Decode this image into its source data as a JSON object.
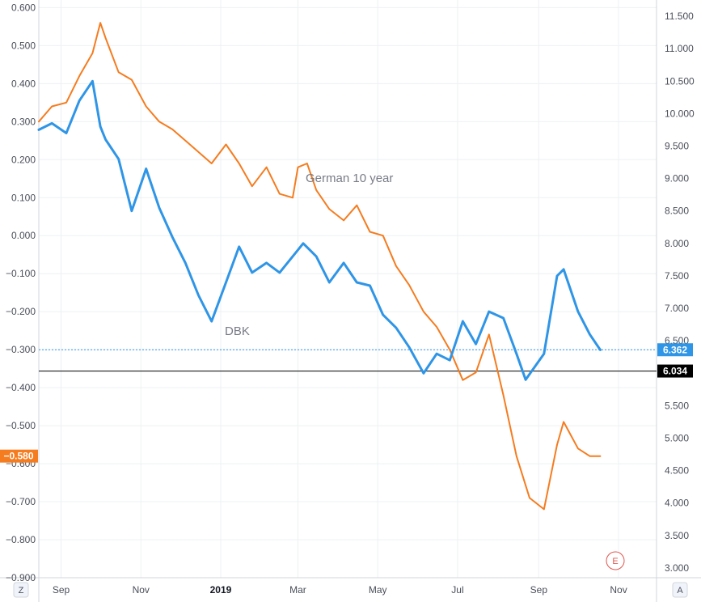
{
  "chart_data": {
    "type": "line",
    "x_axis": {
      "ticks": [
        "Sep",
        "Nov",
        "2019",
        "Mar",
        "May",
        "Jul",
        "Sep",
        "Nov"
      ],
      "range": [
        "2018-08-15",
        "2019-11-30"
      ],
      "tick_dates": [
        "2018-09-01",
        "2018-11-01",
        "2019-01-01",
        "2019-03-01",
        "2019-05-01",
        "2019-07-01",
        "2019-09-01",
        "2019-11-01"
      ]
    },
    "left_axis": {
      "ticks": [
        "0.600",
        "0.500",
        "0.400",
        "0.300",
        "0.200",
        "0.100",
        "0.000",
        "−0.100",
        "−0.200",
        "−0.300",
        "−0.400",
        "−0.500",
        "−0.600",
        "−0.700",
        "−0.800",
        "−0.900"
      ],
      "range": [
        -0.9,
        0.62
      ]
    },
    "right_axis": {
      "ticks": [
        "11.500",
        "11.000",
        "10.500",
        "10.000",
        "9.500",
        "9.000",
        "8.500",
        "8.000",
        "7.500",
        "7.000",
        "6.500",
        "6.000",
        "5.500",
        "5.000",
        "4.500",
        "4.000",
        "3.500",
        "3.000"
      ],
      "range": [
        2.85,
        11.75
      ]
    },
    "grid": true,
    "series": [
      {
        "name": "German 10 year",
        "axis": "left",
        "color": "#f57c1f",
        "x": [
          "2018-08-15",
          "2018-08-25",
          "2018-09-05",
          "2018-09-15",
          "2018-09-25",
          "2018-10-01",
          "2018-10-05",
          "2018-10-15",
          "2018-10-25",
          "2018-11-05",
          "2018-11-15",
          "2018-11-25",
          "2018-12-05",
          "2018-12-15",
          "2018-12-25",
          "2019-01-05",
          "2019-01-15",
          "2019-01-25",
          "2019-02-05",
          "2019-02-15",
          "2019-02-25",
          "2019-03-01",
          "2019-03-08",
          "2019-03-15",
          "2019-03-25",
          "2019-04-05",
          "2019-04-15",
          "2019-04-25",
          "2019-05-05",
          "2019-05-15",
          "2019-05-25",
          "2019-06-05",
          "2019-06-15",
          "2019-06-25",
          "2019-07-05",
          "2019-07-15",
          "2019-07-25",
          "2019-08-05",
          "2019-08-15",
          "2019-08-25",
          "2019-09-05",
          "2019-09-15",
          "2019-09-20",
          "2019-10-01",
          "2019-10-10",
          "2019-10-18"
        ],
        "y": [
          0.3,
          0.34,
          0.35,
          0.42,
          0.48,
          0.56,
          0.52,
          0.43,
          0.41,
          0.34,
          0.3,
          0.28,
          0.25,
          0.22,
          0.19,
          0.24,
          0.19,
          0.13,
          0.18,
          0.11,
          0.1,
          0.18,
          0.19,
          0.12,
          0.07,
          0.04,
          0.08,
          0.01,
          0.0,
          -0.08,
          -0.13,
          -0.2,
          -0.24,
          -0.3,
          -0.38,
          -0.36,
          -0.26,
          -0.42,
          -0.58,
          -0.69,
          -0.72,
          -0.55,
          -0.49,
          -0.56,
          -0.58,
          -0.58
        ]
      },
      {
        "name": "DBK",
        "axis": "right",
        "color": "#2f95e6",
        "x": [
          "2018-08-15",
          "2018-08-25",
          "2018-09-05",
          "2018-09-15",
          "2018-09-25",
          "2018-10-01",
          "2018-10-05",
          "2018-10-15",
          "2018-10-25",
          "2018-11-05",
          "2018-11-15",
          "2018-11-25",
          "2018-12-05",
          "2018-12-15",
          "2018-12-25",
          "2019-01-05",
          "2019-01-15",
          "2019-01-25",
          "2019-02-05",
          "2019-02-15",
          "2019-02-25",
          "2019-03-05",
          "2019-03-15",
          "2019-03-25",
          "2019-04-05",
          "2019-04-15",
          "2019-04-25",
          "2019-05-05",
          "2019-05-15",
          "2019-05-25",
          "2019-06-05",
          "2019-06-15",
          "2019-06-25",
          "2019-07-05",
          "2019-07-15",
          "2019-07-25",
          "2019-08-05",
          "2019-08-15",
          "2019-08-22",
          "2019-09-05",
          "2019-09-15",
          "2019-09-20",
          "2019-10-01",
          "2019-10-10",
          "2019-10-18"
        ],
        "y": [
          9.75,
          9.85,
          9.7,
          10.2,
          10.5,
          9.8,
          9.6,
          9.3,
          8.5,
          9.15,
          8.55,
          8.1,
          7.7,
          7.2,
          6.8,
          7.4,
          7.95,
          7.55,
          7.7,
          7.55,
          7.8,
          8.0,
          7.8,
          7.4,
          7.7,
          7.4,
          7.35,
          6.9,
          6.7,
          6.4,
          6.0,
          6.3,
          6.2,
          6.8,
          6.45,
          6.95,
          6.85,
          6.3,
          5.9,
          6.3,
          7.5,
          7.6,
          6.95,
          6.6,
          6.36
        ]
      }
    ],
    "annotations": [
      {
        "text": "German 10 year",
        "series": "German 10 year"
      },
      {
        "text": "DBK",
        "series": "DBK"
      }
    ],
    "horizontal_lines": [
      {
        "value": 6.362,
        "label": "6.362",
        "axis": "right",
        "color": "#2f95e6",
        "style": "dotted"
      },
      {
        "value": 6.034,
        "label": "6.034",
        "axis": "right",
        "color": "#000000",
        "style": "solid"
      }
    ],
    "left_badge": {
      "value": -0.58,
      "label": "−0.580",
      "color": "#f57c1f"
    },
    "corner_buttons": {
      "left": "Z",
      "right": "A"
    },
    "event_marker": {
      "label": "E",
      "color": "#e0554d"
    }
  }
}
